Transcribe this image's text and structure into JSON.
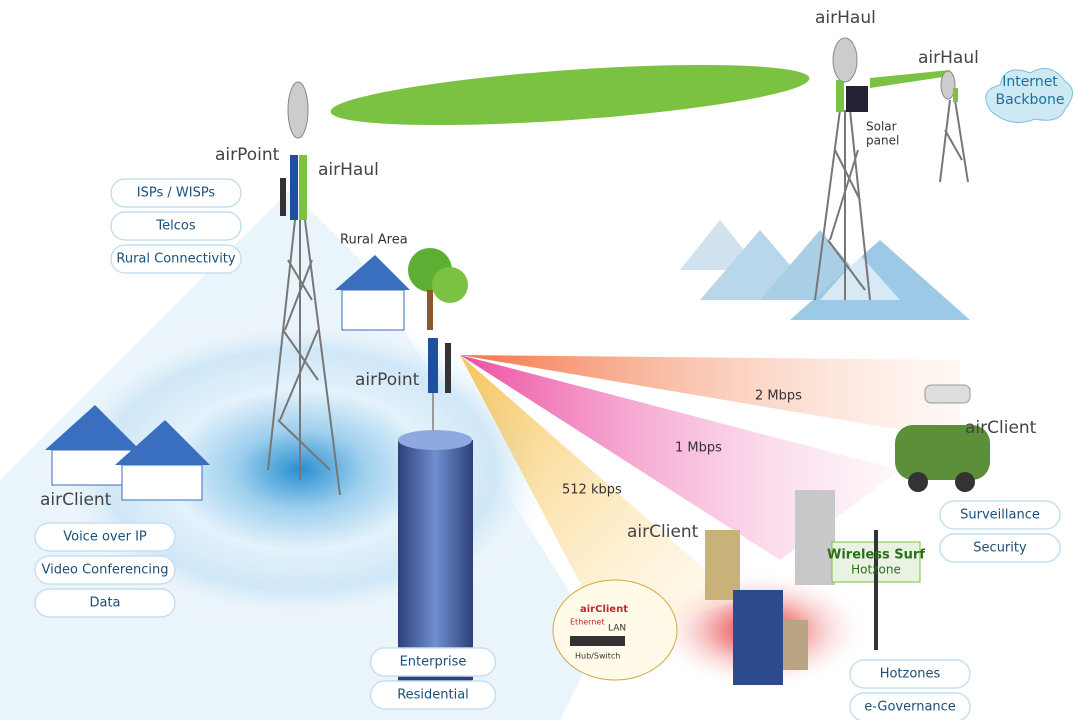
{
  "main_tower": {
    "left_label": "airPoint",
    "right_label": "airHaul"
  },
  "remote_towers": [
    {
      "label": "airHaul"
    },
    {
      "label": "airHaul"
    }
  ],
  "solar_panel": [
    "Solar",
    "panel"
  ],
  "internet_backbone": [
    "Internet",
    "Backbone"
  ],
  "rural_area": "Rural Area",
  "access_point": "airPoint",
  "links": [
    "2 Mbps",
    "1 Mbps",
    "512 kbps"
  ],
  "clients": [
    "airClient",
    "airClient",
    "airClient"
  ],
  "lan_inset": {
    "client": "airClient",
    "ethernet": "Ethernet",
    "lan": "LAN",
    "hub": "Hub/Switch"
  },
  "hotzone_sign": [
    "Wireless Surf",
    "Hotzone"
  ],
  "pill_groups": [
    [
      "ISPs / WISPs",
      "Telcos",
      "Rural Connectivity"
    ],
    [
      "Voice over IP",
      "Video Conferencing",
      "Data"
    ],
    [
      "Enterprise",
      "Residential"
    ],
    [
      "Surveillance",
      "Security"
    ],
    [
      "Hotzones",
      "e-Governance"
    ]
  ]
}
